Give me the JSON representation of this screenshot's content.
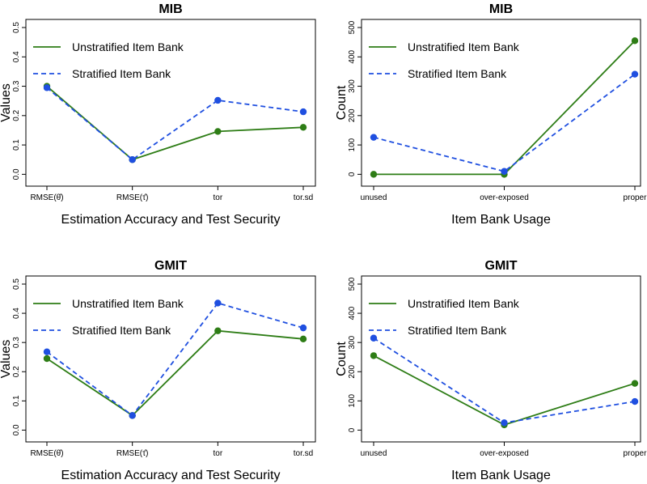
{
  "colors": {
    "unstratified": "#2e7d16",
    "stratified": "#1f4fe0",
    "axis": "#000000",
    "background": "#ffffff"
  },
  "chart_data": [
    {
      "type": "line",
      "title": "MIB",
      "xlabel": "Estimation Accuracy and Test Security",
      "ylabel": "Values",
      "categories": [
        "RMSE(θ̂)",
        "RMSE(τ̂)",
        "tor",
        "tor.sd"
      ],
      "ylim": [
        0,
        0.5
      ],
      "yticks": [
        0,
        0.1,
        0.2,
        0.3,
        0.4,
        0.5
      ],
      "ytick_labels": [
        "0.0",
        "0.1",
        "0.2",
        "0.3",
        "0.4",
        "0.5"
      ],
      "legend_position": "top-left",
      "grid": false,
      "series": [
        {
          "name": "Unstratified Item Bank",
          "values": [
            0.3,
            0.05,
            0.146,
            0.16
          ],
          "style": "solid"
        },
        {
          "name": "Stratified Item Bank",
          "values": [
            0.295,
            0.05,
            0.252,
            0.213
          ],
          "style": "dashed"
        }
      ]
    },
    {
      "type": "line",
      "title": "MIB",
      "xlabel": "Item Bank Usage",
      "ylabel": "Count",
      "categories": [
        "unused",
        "over-exposed",
        "proper"
      ],
      "ylim": [
        0,
        500
      ],
      "yticks": [
        0,
        100,
        200,
        300,
        400,
        500
      ],
      "ytick_labels": [
        "0",
        "100",
        "200",
        "300",
        "400",
        "500"
      ],
      "legend_position": "top-left",
      "grid": false,
      "series": [
        {
          "name": "Unstratified Item Bank",
          "values": [
            0,
            0,
            455
          ],
          "style": "solid"
        },
        {
          "name": "Stratified Item Bank",
          "values": [
            126,
            10,
            341
          ],
          "style": "dashed"
        }
      ]
    },
    {
      "type": "line",
      "title": "GMIT",
      "xlabel": "Estimation Accuracy and Test Security",
      "ylabel": "Values",
      "categories": [
        "RMSE(θ̂)",
        "RMSE(τ̂)",
        "tor",
        "tor.sd"
      ],
      "ylim": [
        0,
        0.5
      ],
      "yticks": [
        0,
        0.1,
        0.2,
        0.3,
        0.4,
        0.5
      ],
      "ytick_labels": [
        "0.0",
        "0.1",
        "0.2",
        "0.3",
        "0.4",
        "0.5"
      ],
      "legend_position": "top-left",
      "grid": false,
      "series": [
        {
          "name": "Unstratified Item Bank",
          "values": [
            0.245,
            0.05,
            0.34,
            0.312
          ],
          "style": "solid"
        },
        {
          "name": "Stratified Item Bank",
          "values": [
            0.268,
            0.05,
            0.435,
            0.35
          ],
          "style": "dashed"
        }
      ]
    },
    {
      "type": "line",
      "title": "GMIT",
      "xlabel": "Item Bank Usage",
      "ylabel": "Count",
      "categories": [
        "unused",
        "over-exposed",
        "proper"
      ],
      "ylim": [
        0,
        500
      ],
      "yticks": [
        0,
        100,
        200,
        300,
        400,
        500
      ],
      "ytick_labels": [
        "0",
        "100",
        "200",
        "300",
        "400",
        "500"
      ],
      "legend_position": "top-left",
      "grid": false,
      "series": [
        {
          "name": "Unstratified Item Bank",
          "values": [
            255,
            18,
            160
          ],
          "style": "solid"
        },
        {
          "name": "Stratified Item Bank",
          "values": [
            315,
            25,
            98
          ],
          "style": "dashed"
        }
      ]
    }
  ]
}
